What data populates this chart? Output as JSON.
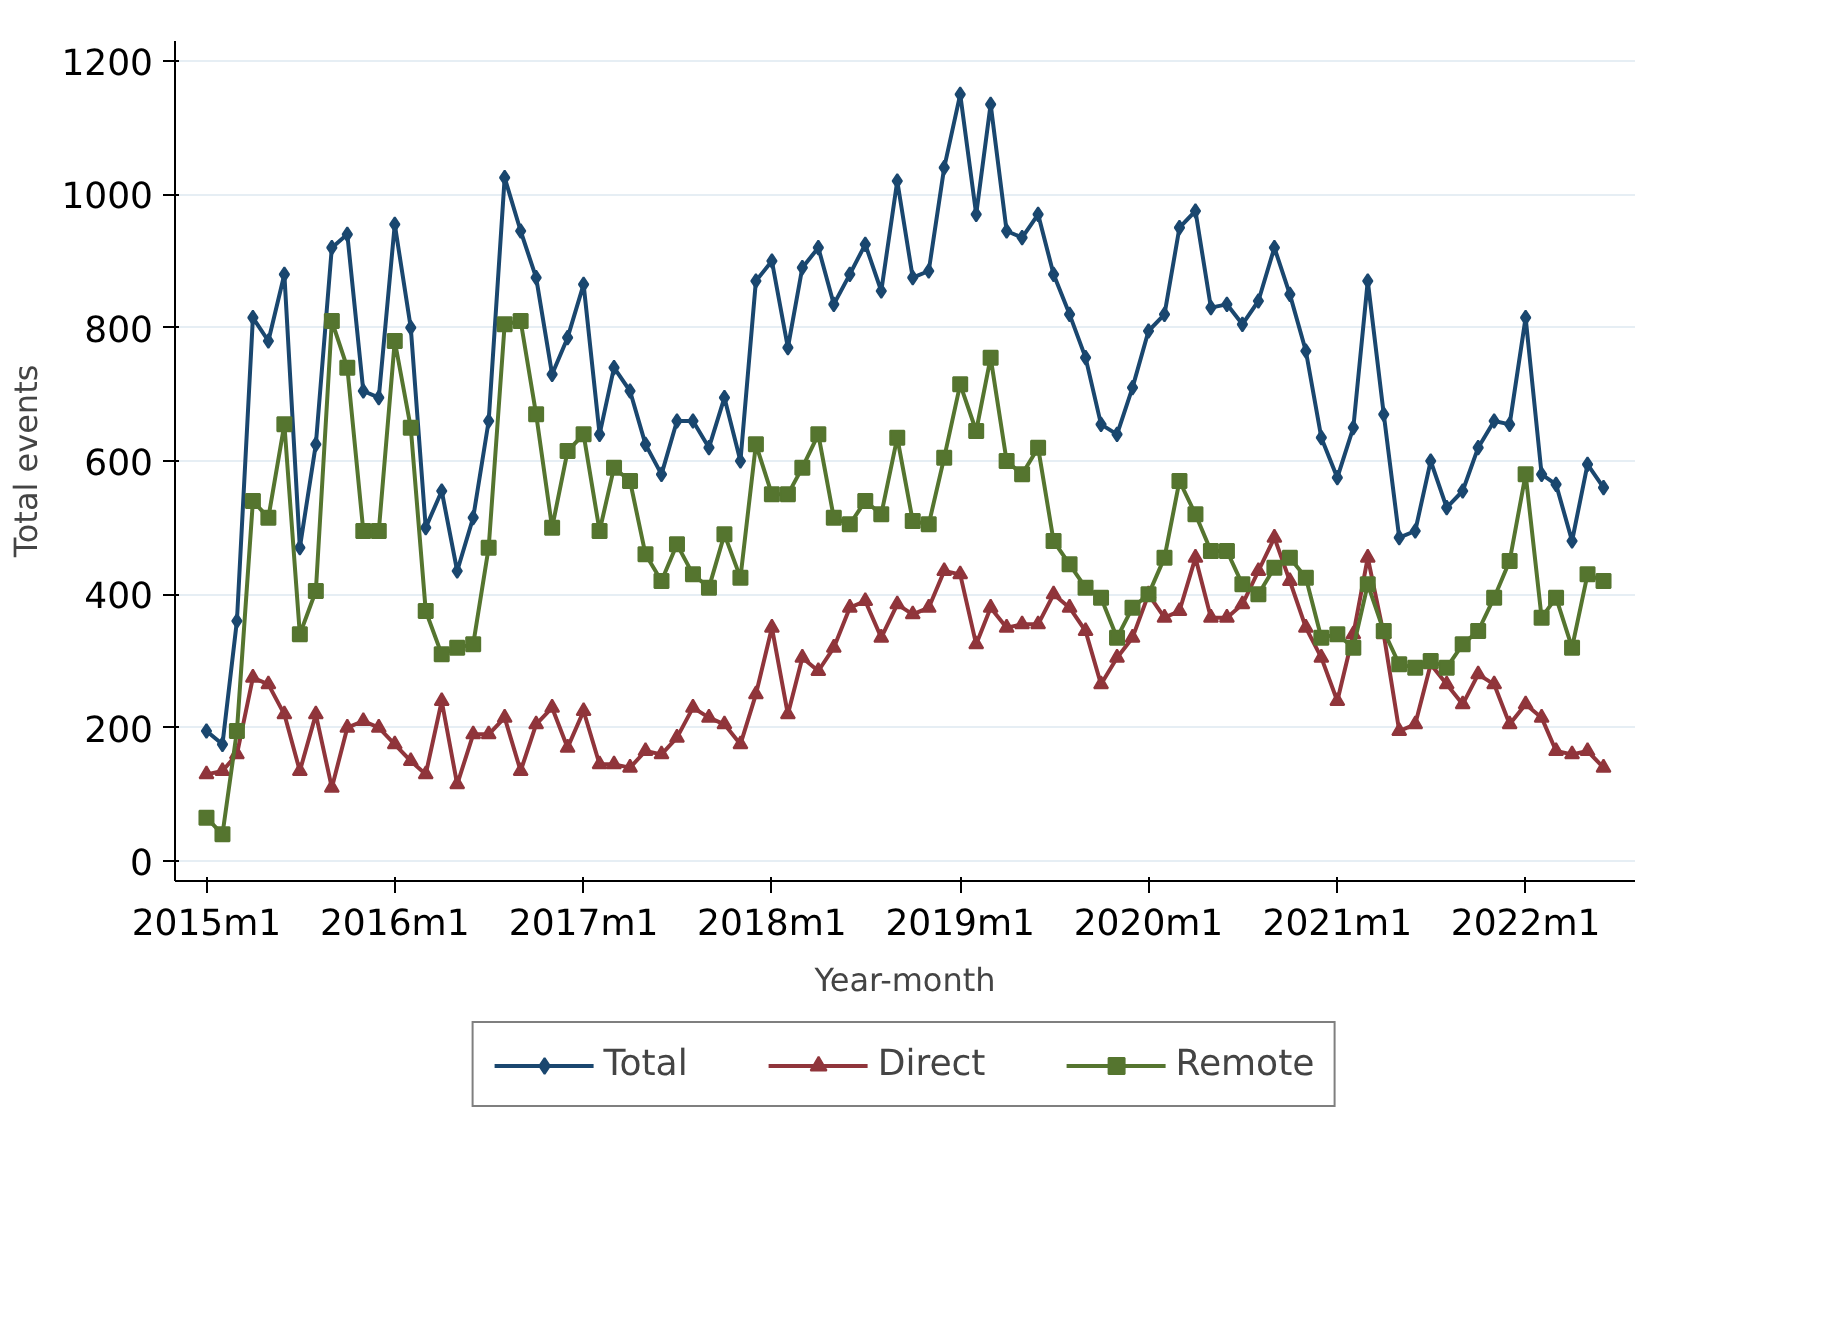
{
  "chart_data": {
    "type": "line",
    "xlabel": "Year-month",
    "ylabel": "Total events",
    "x": [
      "2015-01",
      "2015-02",
      "2015-03",
      "2015-04",
      "2015-05",
      "2015-06",
      "2015-07",
      "2015-08",
      "2015-09",
      "2015-10",
      "2015-11",
      "2015-12",
      "2016-01",
      "2016-02",
      "2016-03",
      "2016-04",
      "2016-05",
      "2016-06",
      "2016-07",
      "2016-08",
      "2016-09",
      "2016-10",
      "2016-11",
      "2016-12",
      "2017-01",
      "2017-02",
      "2017-03",
      "2017-04",
      "2017-05",
      "2017-06",
      "2017-07",
      "2017-08",
      "2017-09",
      "2017-10",
      "2017-11",
      "2017-12",
      "2018-01",
      "2018-02",
      "2018-03",
      "2018-04",
      "2018-05",
      "2018-06",
      "2018-07",
      "2018-08",
      "2018-09",
      "2018-10",
      "2018-11",
      "2018-12",
      "2019-01",
      "2019-02",
      "2019-03",
      "2019-04",
      "2019-05",
      "2019-06",
      "2019-07",
      "2019-08",
      "2019-09",
      "2019-10",
      "2019-11",
      "2019-12",
      "2020-01",
      "2020-02",
      "2020-03",
      "2020-04",
      "2020-05",
      "2020-06",
      "2020-07",
      "2020-08",
      "2020-09",
      "2020-10",
      "2020-11",
      "2020-12",
      "2021-01",
      "2021-02",
      "2021-03",
      "2021-04",
      "2021-05",
      "2021-06",
      "2021-07",
      "2021-08",
      "2021-09",
      "2021-10",
      "2021-11",
      "2021-12",
      "2022-01",
      "2022-02",
      "2022-03",
      "2022-04",
      "2022-05",
      "2022-06"
    ],
    "series": [
      {
        "name": "Total",
        "color": "#1a476f",
        "marker": "diamond",
        "values": [
          195,
          175,
          360,
          815,
          780,
          880,
          470,
          625,
          920,
          940,
          705,
          695,
          955,
          800,
          500,
          555,
          435,
          515,
          660,
          1025,
          945,
          875,
          730,
          785,
          865,
          640,
          740,
          705,
          625,
          580,
          660,
          660,
          620,
          695,
          600,
          870,
          900,
          770,
          890,
          920,
          835,
          880,
          925,
          855,
          1020,
          875,
          885,
          1040,
          1150,
          970,
          1135,
          945,
          935,
          970,
          880,
          820,
          755,
          655,
          640,
          710,
          795,
          820,
          950,
          975,
          830,
          835,
          805,
          840,
          920,
          850,
          765,
          635,
          575,
          650,
          870,
          670,
          485,
          495,
          600,
          530,
          555,
          620,
          660,
          655,
          815,
          580,
          565,
          480,
          595,
          560
        ]
      },
      {
        "name": "Direct",
        "color": "#90353b",
        "marker": "triangle",
        "values": [
          130,
          135,
          160,
          275,
          265,
          220,
          135,
          220,
          110,
          200,
          210,
          200,
          175,
          150,
          130,
          240,
          115,
          190,
          190,
          215,
          135,
          205,
          230,
          170,
          225,
          145,
          145,
          140,
          165,
          160,
          185,
          230,
          215,
          205,
          175,
          250,
          350,
          220,
          305,
          285,
          320,
          380,
          390,
          335,
          385,
          370,
          380,
          435,
          430,
          325,
          380,
          350,
          355,
          355,
          400,
          380,
          345,
          265,
          305,
          335,
          400,
          365,
          375,
          455,
          365,
          365,
          385,
          435,
          485,
          420,
          350,
          305,
          240,
          340,
          455,
          340,
          195,
          205,
          295,
          265,
          235,
          280,
          265,
          205,
          235,
          215,
          165,
          160,
          165,
          140
        ]
      },
      {
        "name": "Remote",
        "color": "#55752f",
        "marker": "square",
        "values": [
          65,
          40,
          195,
          540,
          515,
          655,
          340,
          405,
          810,
          740,
          495,
          495,
          780,
          650,
          375,
          310,
          320,
          325,
          470,
          805,
          810,
          670,
          500,
          615,
          640,
          495,
          590,
          570,
          460,
          420,
          475,
          430,
          410,
          490,
          425,
          625,
          550,
          550,
          590,
          640,
          515,
          505,
          540,
          520,
          635,
          510,
          505,
          605,
          715,
          645,
          755,
          600,
          580,
          620,
          480,
          445,
          410,
          395,
          335,
          380,
          400,
          455,
          570,
          520,
          465,
          465,
          415,
          400,
          440,
          455,
          425,
          335,
          340,
          320,
          415,
          345,
          295,
          290,
          300,
          290,
          325,
          345,
          395,
          450,
          580,
          365,
          395,
          320,
          430,
          420
        ]
      }
    ],
    "xlim": [
      "2014-11",
      "2022-08"
    ],
    "xticks": [
      {
        "value": "2015-01",
        "label": "2015m1"
      },
      {
        "value": "2016-01",
        "label": "2016m1"
      },
      {
        "value": "2017-01",
        "label": "2017m1"
      },
      {
        "value": "2018-01",
        "label": "2018m1"
      },
      {
        "value": "2019-01",
        "label": "2019m1"
      },
      {
        "value": "2020-01",
        "label": "2020m1"
      },
      {
        "value": "2021-01",
        "label": "2021m1"
      },
      {
        "value": "2022-01",
        "label": "2022m1"
      }
    ],
    "ylim": [
      -30,
      1230
    ],
    "yticks": [
      0,
      200,
      400,
      600,
      800,
      1000,
      1200
    ],
    "grid": "y",
    "legend": "bottom",
    "line_style": "solid"
  }
}
